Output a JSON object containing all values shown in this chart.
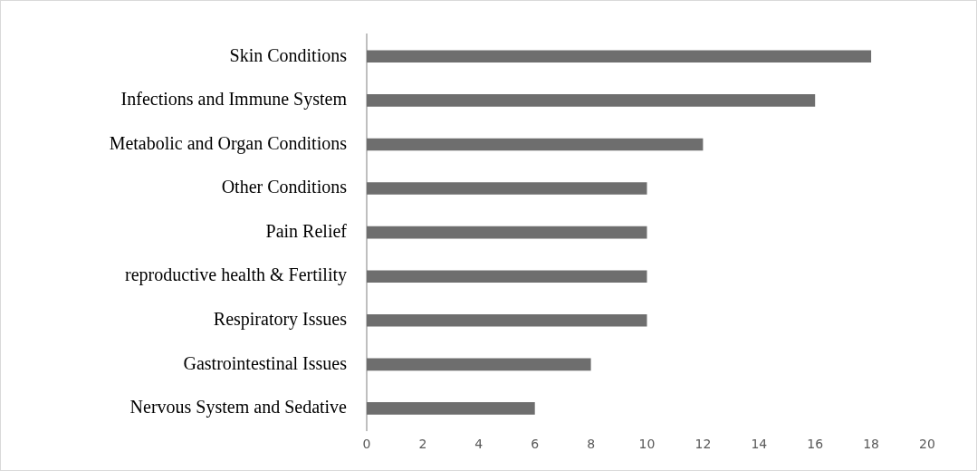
{
  "chart_data": {
    "type": "bar",
    "orientation": "horizontal",
    "categories": [
      "Skin Conditions",
      "Infections and Immune System",
      "Metabolic and Organ Conditions",
      "Other Conditions",
      "Pain Relief",
      "reproductive health & Fertility",
      "Respiratory Issues",
      "Gastrointestinal Issues",
      "Nervous System and Sedative"
    ],
    "values": [
      18,
      16,
      12,
      10,
      10,
      10,
      10,
      8,
      6
    ],
    "color": "#6e6e6e",
    "xlim": [
      0,
      20
    ],
    "xticks": [
      0,
      2,
      4,
      6,
      8,
      10,
      12,
      14,
      16,
      18,
      20
    ],
    "grid": false,
    "legend": false
  }
}
